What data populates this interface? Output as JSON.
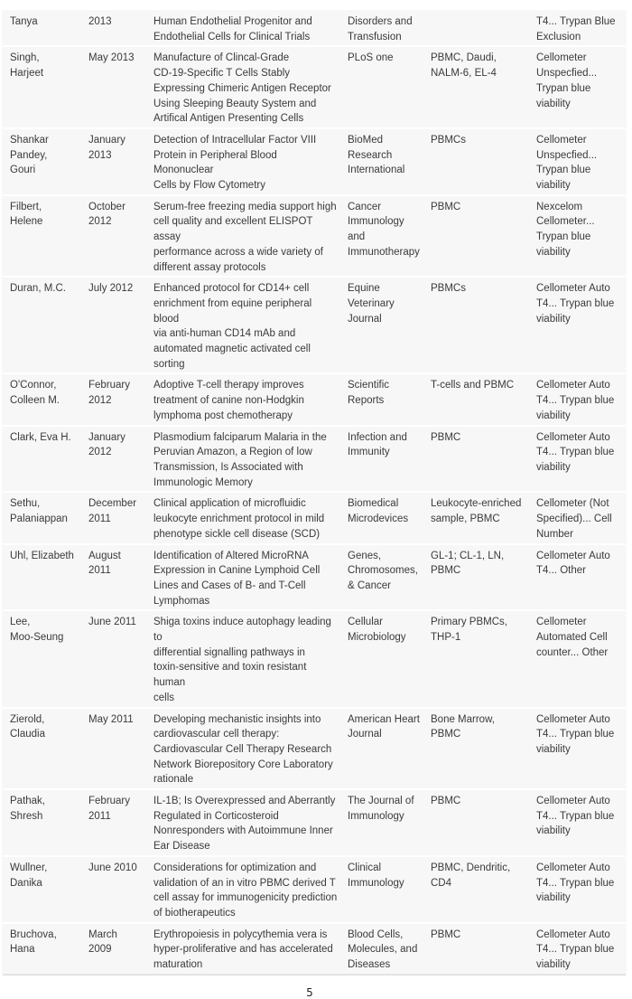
{
  "rows": [
    {
      "author": "Tanya",
      "date": "2013",
      "title": "Human Endothelial Progenitor and\nEndothelial Cells for Clinical Trials",
      "journal": "Disorders and\nTransfusion",
      "cells": "",
      "method": "T4... Trypan Blue\nExclusion"
    },
    {
      "author": "Singh,\nHarjeet",
      "date": "May 2013",
      "title": "Manufacture of Clincal-Grade\nCD-19-Specific T Cells Stably\nExpressing Chimeric Antigen Receptor\nUsing Sleeping Beauty System and\nArtifical Antigen Presenting Cells",
      "journal": "PLoS one",
      "cells": "PBMC, Daudi,\nNALM-6, EL-4",
      "method": "Cellometer\nUnspecfied...\nTrypan blue\nviability"
    },
    {
      "author": "Shankar\nPandey,\nGouri",
      "date": "January\n2013",
      "title": "Detection of Intracellular Factor VIII\nProtein in Peripheral Blood Mononuclear\nCells by Flow Cytometry",
      "journal": "BioMed\nResearch\nInternational",
      "cells": "PBMCs",
      "method": "Cellometer\nUnspecfied...\nTrypan blue\nviability"
    },
    {
      "author": "Filbert,\nHelene",
      "date": "October\n2012",
      "title": "Serum-free freezing media support high\ncell quality and excellent ELISPOT assay\nperformance across a wide variety of\ndifferent assay protocols",
      "journal": "Cancer\nImmunology\nand\nImmunotherapy",
      "cells": "PBMC",
      "method": "Nexcelom\nCellometer...\nTrypan blue\nviability"
    },
    {
      "author": "Duran, M.C.",
      "date": "July 2012",
      "title": "Enhanced protocol for CD14+ cell\nenrichment from equine peripheral blood\nvia anti-human CD14 mAb and\nautomated magnetic activated cell\nsorting",
      "journal": "Equine\nVeterinary\nJournal",
      "cells": "PBMCs",
      "method": "Cellometer Auto\nT4... Trypan blue\nviability"
    },
    {
      "author": "O'Connor,\nColleen M.",
      "date": "February\n2012",
      "title": "Adoptive T-cell therapy improves\ntreatment of canine non-Hodgkin\nlymphoma post chemotherapy",
      "journal": "Scientific\nReports",
      "cells": "T-cells and PBMC",
      "method": "Cellometer Auto\nT4... Trypan blue\nviability"
    },
    {
      "author": "Clark, Eva H.",
      "date": "January\n2012",
      "title": "Plasmodium falciparum Malaria in the\nPeruvian Amazon, a Region of low\nTransmission, Is Associated with\nImmunologic Memory",
      "journal": "Infection and\nImmunity",
      "cells": "PBMC",
      "method": "Cellometer Auto\nT4... Trypan blue\nviability"
    },
    {
      "author": "Sethu,\nPalaniappan",
      "date": "December\n2011",
      "title": "Clinical application of microfluidic\nleukocyte enrichment protocol in mild\nphenotype sickle cell disease (SCD)",
      "journal": "Biomedical\nMicrodevices",
      "cells": "Leukocyte-enriched\nsample, PBMC",
      "method": "Cellometer (Not\nSpecified)... Cell\nNumber"
    },
    {
      "author": "Uhl, Elizabeth",
      "date": "August\n2011",
      "title": "Identification of Altered MicroRNA\nExpression in Canine Lymphoid Cell\nLines and Cases of B- and T-Cell\nLymphomas",
      "journal": "Genes,\nChromosomes,\n& Cancer",
      "cells": "GL-1; CL-1, LN,\nPBMC",
      "method": "Cellometer Auto\nT4... Other"
    },
    {
      "author": "Lee,\nMoo-Seung",
      "date": "June 2011",
      "title": "Shiga toxins induce autophagy leading to\ndifferential signalling pathways in\ntoxin-sensitive and toxin resistant human\ncells",
      "journal": "Cellular\nMicrobiology",
      "cells": "Primary PBMCs,\nTHP-1",
      "method": "Cellometer\nAutomated Cell\ncounter... Other"
    },
    {
      "author": "Zierold,\nClaudia",
      "date": "May 2011",
      "title": "Developing mechanistic insights into\ncardiovascular cell therapy:\nCardiovascular Cell Therapy Research\nNetwork Biorepository Core Laboratory\nrationale",
      "journal": "American Heart\nJournal",
      "cells": "Bone Marrow,\nPBMC",
      "method": "Cellometer Auto\nT4... Trypan blue\nviability"
    },
    {
      "author": "Pathak,\nShresh",
      "date": "February\n2011",
      "title": "IL-1B; Is Overexpressed and Aberrantly\nRegulated in Corticosteroid\nNonresponders with Autoimmune Inner\nEar Disease",
      "journal": "The Journal of\nImmunology",
      "cells": "PBMC",
      "method": "Cellometer Auto\nT4... Trypan blue\nviability"
    },
    {
      "author": "Wullner,\nDanika",
      "date": "June 2010",
      "title": "Considerations for optimization and\nvalidation of an in vitro PBMC derived T\ncell assay for immunogenicity prediction\nof biotherapeutics",
      "journal": "Clinical\nImmunology",
      "cells": "PBMC, Dendritic,\nCD4",
      "method": "Cellometer Auto\nT4... Trypan blue\nviability"
    },
    {
      "author": "Bruchova,\nHana",
      "date": "March\n2009",
      "title": "Erythropoiesis in polycythemia vera is\nhyper-proliferative and has accelerated\nmaturation",
      "journal": "Blood Cells,\nMolecules, and\nDiseases",
      "cells": "PBMC",
      "method": "Cellometer Auto\nT4... Trypan blue\nviability"
    }
  ],
  "page_number": "5"
}
